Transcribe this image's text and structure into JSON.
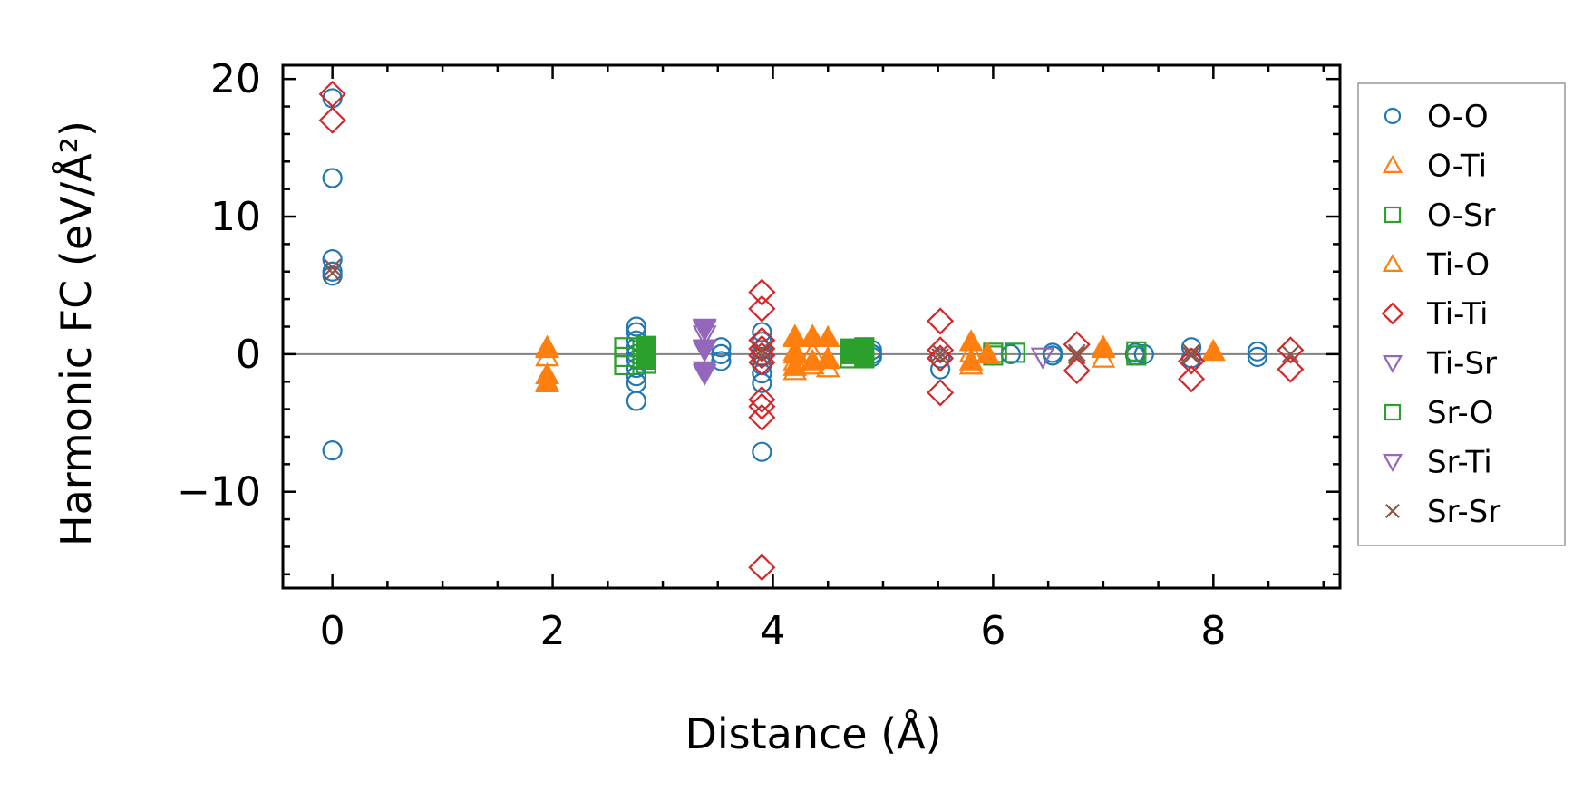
{
  "chart_data": {
    "type": "scatter",
    "title": "",
    "xlabel": "Distance (Å)",
    "ylabel": "Harmonic FC (eV/Å²)",
    "xlim": [
      -0.45,
      9.15
    ],
    "ylim": [
      -17,
      21
    ],
    "xticks": [
      0,
      2,
      4,
      6,
      8
    ],
    "yticks": [
      -10,
      0,
      10,
      20
    ],
    "xtick_labels": [
      "0",
      "2",
      "4",
      "6",
      "8"
    ],
    "ytick_labels": [
      "−10",
      "0",
      "10",
      "20"
    ],
    "grid": false,
    "zero_line": true,
    "legend_position": "right",
    "series": [
      {
        "name": "O-O",
        "marker": "circle",
        "filled": false,
        "color": "#1f77b4",
        "points": [
          [
            0,
            18.6
          ],
          [
            0,
            12.8
          ],
          [
            0,
            6.9
          ],
          [
            0,
            6.0
          ],
          [
            0,
            5.7
          ],
          [
            0,
            -7.0
          ],
          [
            2.76,
            2.0
          ],
          [
            2.76,
            1.6
          ],
          [
            2.76,
            1.0
          ],
          [
            2.76,
            0.5
          ],
          [
            2.76,
            0.0
          ],
          [
            2.76,
            -0.4
          ],
          [
            2.76,
            -1.0
          ],
          [
            2.76,
            -1.6
          ],
          [
            2.76,
            -2.1
          ],
          [
            2.76,
            -3.4
          ],
          [
            3.53,
            0.5
          ],
          [
            3.53,
            0.0
          ],
          [
            3.53,
            -0.5
          ],
          [
            3.9,
            1.6
          ],
          [
            3.9,
            0.9
          ],
          [
            3.9,
            0.3
          ],
          [
            3.9,
            -0.2
          ],
          [
            3.9,
            -0.8
          ],
          [
            3.9,
            -1.4
          ],
          [
            3.9,
            -2.1
          ],
          [
            3.9,
            -7.1
          ],
          [
            4.9,
            0.3
          ],
          [
            4.9,
            0.0
          ],
          [
            4.9,
            -0.2
          ],
          [
            5.52,
            -1.1
          ],
          [
            5.52,
            -0.3
          ],
          [
            6.16,
            0.0
          ],
          [
            6.54,
            0.1
          ],
          [
            6.54,
            -0.1
          ],
          [
            7.29,
            0.1
          ],
          [
            7.29,
            -0.1
          ],
          [
            7.37,
            0.0
          ],
          [
            7.8,
            0.5
          ],
          [
            7.8,
            -0.3
          ],
          [
            8.4,
            0.2
          ],
          [
            8.4,
            -0.2
          ]
        ]
      },
      {
        "name": "O-Ti",
        "marker": "triangle-up",
        "filled": false,
        "color": "#ff7f0e",
        "points": [
          [
            1.95,
            0.4
          ],
          [
            1.95,
            -0.2
          ],
          [
            1.95,
            -1.5
          ],
          [
            1.95,
            -2.0
          ],
          [
            4.2,
            1.2
          ],
          [
            4.2,
            0.2
          ],
          [
            4.2,
            -0.5
          ],
          [
            4.2,
            -1.2
          ],
          [
            4.36,
            1.3
          ],
          [
            4.36,
            0.1
          ],
          [
            4.36,
            -0.8
          ],
          [
            4.5,
            1.2
          ],
          [
            4.5,
            -0.3
          ],
          [
            4.5,
            -1.0
          ],
          [
            5.8,
            0.9
          ],
          [
            5.8,
            0.1
          ],
          [
            5.8,
            -0.8
          ],
          [
            7.0,
            0.5
          ],
          [
            7.0,
            -0.3
          ],
          [
            8.0,
            0.2
          ]
        ]
      },
      {
        "name": "O-Sr",
        "marker": "square",
        "filled": false,
        "color": "#2ca02c",
        "points": [
          [
            2.65,
            0.5
          ],
          [
            2.65,
            -0.2
          ],
          [
            2.65,
            -0.8
          ],
          [
            2.85,
            0.6
          ],
          [
            2.85,
            -0.2
          ],
          [
            2.85,
            -0.7
          ],
          [
            4.7,
            0.4
          ],
          [
            4.7,
            -0.3
          ],
          [
            4.83,
            0.5
          ],
          [
            4.83,
            -0.3
          ],
          [
            6.0,
            0.1
          ],
          [
            6.0,
            -0.1
          ],
          [
            6.2,
            0.1
          ],
          [
            7.3,
            0.2
          ],
          [
            7.3,
            -0.1
          ]
        ]
      },
      {
        "name": "Ti-O",
        "marker": "triangle-up",
        "filled": true,
        "color": "#ff7f0e",
        "points": [
          [
            1.95,
            0.5
          ],
          [
            1.95,
            -1.5
          ],
          [
            1.95,
            -2.1
          ],
          [
            4.2,
            1.3
          ],
          [
            4.2,
            0.0
          ],
          [
            4.2,
            -0.9
          ],
          [
            4.36,
            1.2
          ],
          [
            4.36,
            -0.5
          ],
          [
            4.5,
            1.2
          ],
          [
            4.5,
            -0.4
          ],
          [
            5.8,
            0.9
          ],
          [
            5.8,
            -0.5
          ],
          [
            5.95,
            0.0
          ],
          [
            7.0,
            0.4
          ],
          [
            8.0,
            0.2
          ]
        ]
      },
      {
        "name": "Ti-Ti",
        "marker": "diamond",
        "filled": false,
        "color": "#d62728",
        "points": [
          [
            0,
            18.9
          ],
          [
            0,
            17.0
          ],
          [
            3.9,
            4.5
          ],
          [
            3.9,
            3.3
          ],
          [
            3.9,
            1.0
          ],
          [
            3.9,
            0.4
          ],
          [
            3.9,
            -0.1
          ],
          [
            3.9,
            -0.6
          ],
          [
            3.9,
            -3.3
          ],
          [
            3.9,
            -3.8
          ],
          [
            3.9,
            -4.6
          ],
          [
            3.9,
            -15.5
          ],
          [
            5.52,
            2.4
          ],
          [
            5.52,
            0.3
          ],
          [
            5.52,
            -0.3
          ],
          [
            5.52,
            -2.8
          ],
          [
            6.76,
            0.7
          ],
          [
            6.76,
            -1.2
          ],
          [
            7.8,
            -0.5
          ],
          [
            7.8,
            -1.8
          ],
          [
            8.7,
            0.3
          ],
          [
            8.7,
            -1.1
          ]
        ]
      },
      {
        "name": "Ti-Sr",
        "marker": "triangle-down",
        "filled": false,
        "color": "#9467bd",
        "points": [
          [
            3.38,
            1.9
          ],
          [
            3.38,
            1.4
          ],
          [
            3.38,
            0.4
          ],
          [
            3.38,
            -1.4
          ],
          [
            6.45,
            -0.2
          ]
        ]
      },
      {
        "name": "Sr-O",
        "marker": "square",
        "filled": true,
        "color": "#2ca02c",
        "points": [
          [
            2.85,
            0.5
          ],
          [
            2.85,
            -0.4
          ],
          [
            4.7,
            0.4
          ],
          [
            4.7,
            0.0
          ],
          [
            4.83,
            0.4
          ],
          [
            4.83,
            -0.3
          ]
        ]
      },
      {
        "name": "Sr-Ti",
        "marker": "triangle-down",
        "filled": true,
        "color": "#9467bd",
        "points": [
          [
            3.38,
            1.8
          ],
          [
            3.38,
            0.3
          ],
          [
            3.38,
            -1.2
          ]
        ]
      },
      {
        "name": "Sr-Sr",
        "marker": "x",
        "filled": false,
        "color": "#8c564b",
        "points": [
          [
            0,
            6.3
          ],
          [
            0,
            5.9
          ],
          [
            3.9,
            0.3
          ],
          [
            3.9,
            -0.2
          ],
          [
            5.52,
            0.1
          ],
          [
            5.52,
            -0.2
          ],
          [
            6.76,
            0.1
          ],
          [
            6.76,
            -0.1
          ],
          [
            7.8,
            0.1
          ],
          [
            7.8,
            -0.1
          ],
          [
            8.7,
            0.0
          ]
        ]
      }
    ]
  }
}
